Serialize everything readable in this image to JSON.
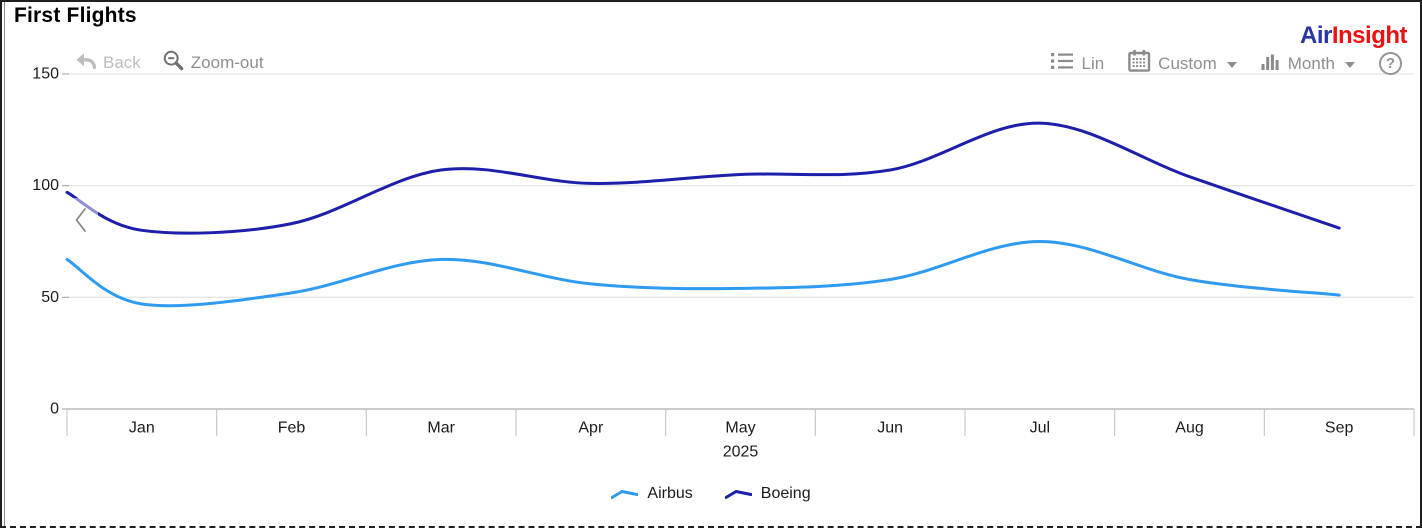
{
  "window": {
    "title": "First Flights"
  },
  "logo": {
    "text_primary": "Air",
    "text_secondary": "Insight",
    "color_primary": "#2b35a8",
    "color_secondary": "#ee1111"
  },
  "toolbar": {
    "back_label": "Back",
    "zoom_out_label": "Zoom-out",
    "lin_label": "Lin",
    "custom_label": "Custom",
    "month_label": "Month",
    "help_label": "?"
  },
  "icons": {
    "back": "curved-back-arrow",
    "zoom_out": "magnifier-minus",
    "lin": "bulleted-list",
    "custom": "calendar",
    "month": "bar-columns",
    "help": "question-circle",
    "scroll": "chevron-left"
  },
  "colors": {
    "airbus": "#2e9bf0",
    "boeing": "#1c1faa",
    "grid": "#e5e5e5",
    "axis": "#adadad",
    "separator": "#c9c9c9",
    "tick_label": "#1b1b1b",
    "toolbar_text": "#8f8f8f",
    "toolbar_disabled": "#bdbdbd"
  },
  "chart_data": {
    "type": "line",
    "title": "First Flights",
    "smoothed": true,
    "grid": "horizontal-only",
    "legend_position": "bottom-center",
    "x_categories": [
      "Jan",
      "Feb",
      "Mar",
      "Apr",
      "May",
      "Jun",
      "Jul",
      "Aug",
      "Sep"
    ],
    "x_period_label": "2025",
    "y_ticks": [
      0,
      50,
      100,
      150
    ],
    "ylim": [
      0,
      150
    ],
    "series": [
      {
        "name": "Airbus",
        "color": "#2e9bf0",
        "left_edge_value": 67,
        "values": [
          47,
          52,
          67,
          56,
          54,
          58,
          75,
          58,
          51
        ]
      },
      {
        "name": "Boeing",
        "color": "#1c1faa",
        "left_edge_value": 97,
        "values": [
          80,
          83,
          107,
          101,
          105,
          107,
          128,
          104,
          81
        ]
      }
    ]
  }
}
